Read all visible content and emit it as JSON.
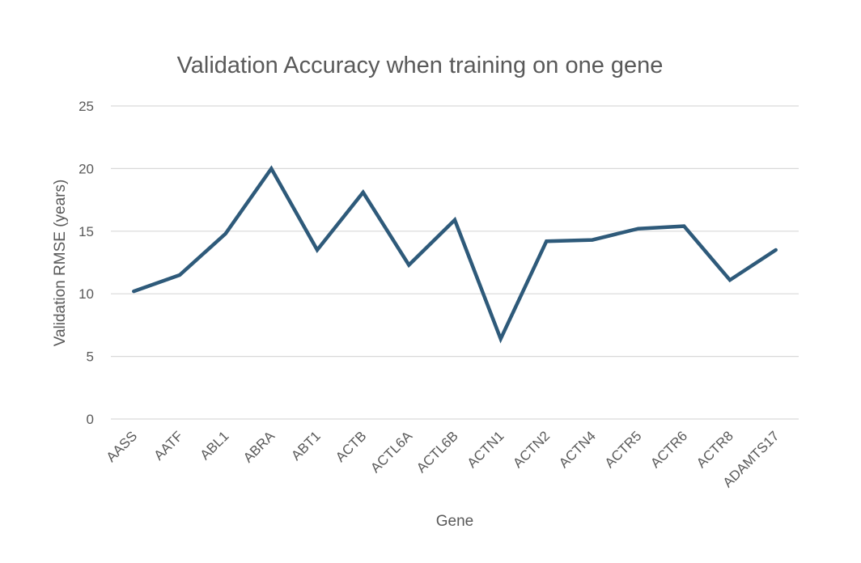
{
  "chart_data": {
    "type": "line",
    "title": "Validation Accuracy when training on one gene",
    "xlabel": "Gene",
    "ylabel": "Validation RMSE (years)",
    "categories": [
      "AASS",
      "AATF",
      "ABL1",
      "ABRA",
      "ABT1",
      "ACTB",
      "ACTL6A",
      "ACTL6B",
      "ACTN1",
      "ACTN2",
      "ACTN4",
      "ACTR5",
      "ACTR6",
      "ACTR8",
      "ADAMTS17"
    ],
    "series": [
      {
        "values": [
          10.2,
          11.5,
          14.8,
          20.0,
          13.5,
          18.1,
          12.3,
          15.9,
          6.4,
          14.2,
          14.3,
          15.2,
          15.4,
          11.1,
          13.5
        ]
      }
    ],
    "ylim": [
      0,
      25
    ],
    "yticks": [
      "0",
      "5",
      "10",
      "15",
      "20",
      "25"
    ],
    "grid": true,
    "legend": "none",
    "line_color": "#2e5a7a"
  }
}
